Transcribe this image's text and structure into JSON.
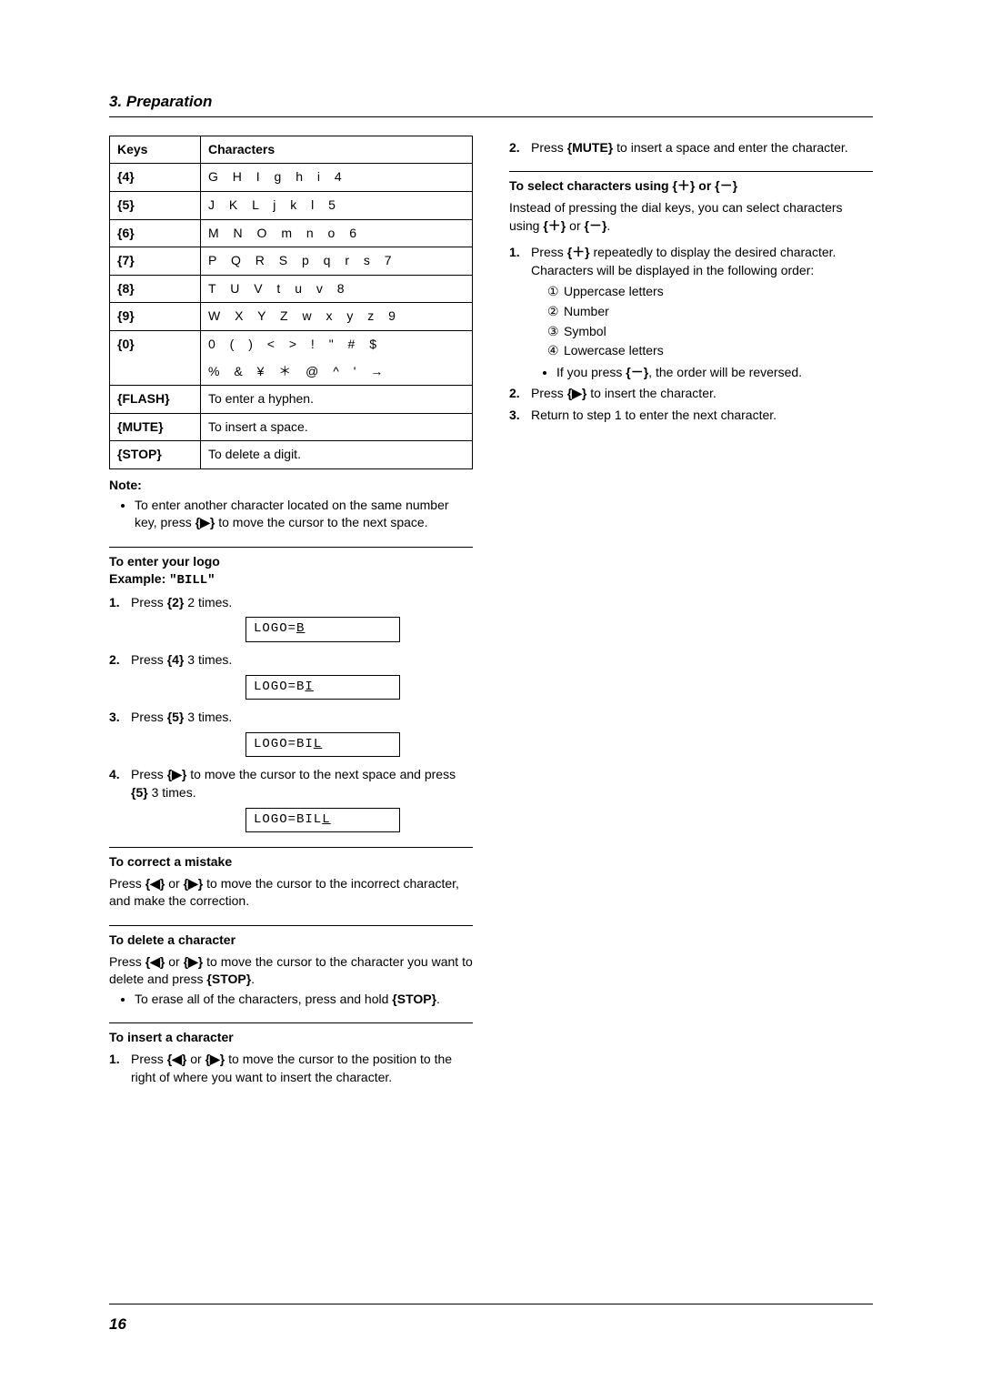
{
  "header": "3. Preparation",
  "page_number": "16",
  "table": {
    "header_keys": "Keys",
    "header_chars": "Characters",
    "rows": [
      {
        "key": "{4}",
        "chars": "G H I g h i 4"
      },
      {
        "key": "{5}",
        "chars": "J K L j k l 5"
      },
      {
        "key": "{6}",
        "chars": "M N O m n o 6"
      },
      {
        "key": "{7}",
        "chars": "P Q R S p q r s 7"
      },
      {
        "key": "{8}",
        "chars": "T U V t u v 8"
      },
      {
        "key": "{9}",
        "chars": "W X Y Z w x y z 9"
      },
      {
        "key": "{0}",
        "chars": "0 ( ) < > ! \" # $"
      },
      {
        "key": "",
        "chars": "% & ¥ ＊ @ ^ ' →"
      },
      {
        "key": "{FLASH}",
        "chars_plain": "To enter a hyphen."
      },
      {
        "key": "{MUTE}",
        "chars_plain": "To insert a space."
      },
      {
        "key": "{STOP}",
        "chars_plain": "To delete a digit."
      }
    ]
  },
  "note_label": "Note:",
  "note_bullet": "To enter another character located on the same number key, press {▶} to move the cursor to the next space.",
  "logo_section": {
    "title": "To enter your logo",
    "example_label": "Example: ",
    "example_value": "\"BILL\"",
    "steps": [
      {
        "num": "1.",
        "text": "Press {2} 2 times.",
        "display": "LOGO=",
        "last": "B"
      },
      {
        "num": "2.",
        "text": "Press {4} 3 times.",
        "display": "LOGO=B",
        "last": "I"
      },
      {
        "num": "3.",
        "text": "Press {5} 3 times.",
        "display": "LOGO=BI",
        "last": "L"
      },
      {
        "num": "4.",
        "text": "Press {▶} to move the cursor to the next space and press {5} 3 times.",
        "display": "LOGO=BIL",
        "last": "L"
      }
    ]
  },
  "correct_section": {
    "title": "To correct a mistake",
    "text": "Press {◀} or {▶} to move the cursor to the incorrect character, and make the correction."
  },
  "delete_section": {
    "title": "To delete a character",
    "text": "Press {◀} or {▶} to move the cursor to the character you want to delete and press {STOP}.",
    "bullet": "To erase all of the characters, press and hold {STOP}."
  },
  "insert_section": {
    "title": "To insert a character",
    "step1_num": "1.",
    "step1_text": "Press {◀} or {▶} to move the cursor to the position to the right of where you want to insert the character."
  },
  "right_col": {
    "step2_num": "2.",
    "step2_text": "Press {MUTE} to insert a space and enter the character.",
    "select_title": "To select characters using {＋} or {－}",
    "select_text": "Instead of pressing the dial keys, you can select characters using {＋} or {－}.",
    "sel_step1_num": "1.",
    "sel_step1_text": "Press {＋} repeatedly to display the desired character. Characters will be displayed in the following order:",
    "order": [
      {
        "c": "①",
        "t": "Uppercase letters"
      },
      {
        "c": "②",
        "t": "Number"
      },
      {
        "c": "③",
        "t": "Symbol"
      },
      {
        "c": "④",
        "t": "Lowercase letters"
      }
    ],
    "order_bullet": "If you press {－}, the order will be reversed.",
    "sel_step2_num": "2.",
    "sel_step2_text": "Press {▶} to insert the character.",
    "sel_step3_num": "3.",
    "sel_step3_text": "Return to step 1 to enter the next character."
  }
}
